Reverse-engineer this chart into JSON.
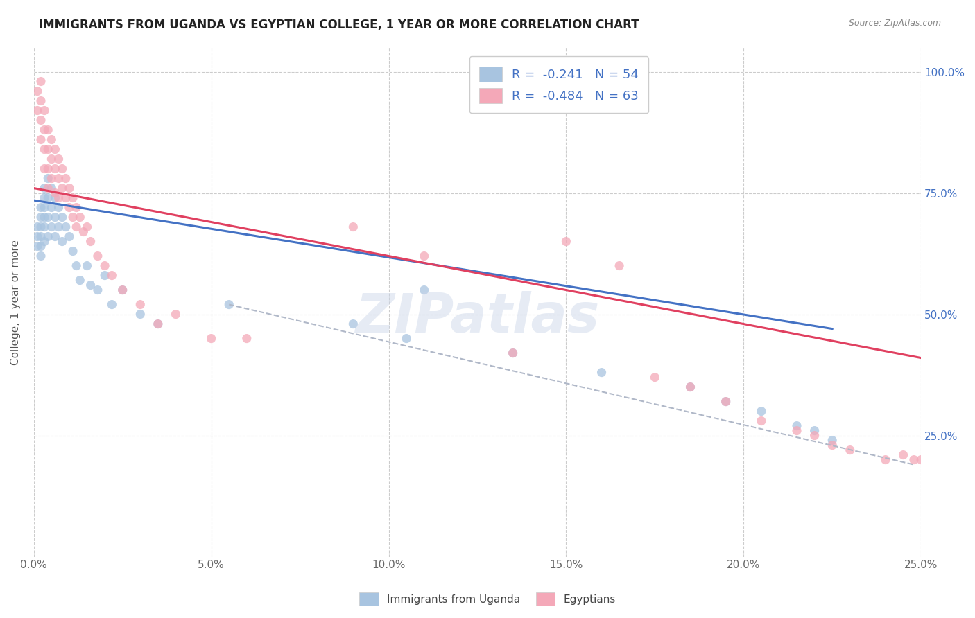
{
  "title": "IMMIGRANTS FROM UGANDA VS EGYPTIAN COLLEGE, 1 YEAR OR MORE CORRELATION CHART",
  "source": "Source: ZipAtlas.com",
  "ylabel": "College, 1 year or more",
  "xlim": [
    0.0,
    0.25
  ],
  "ylim": [
    0.0,
    1.05
  ],
  "xtick_labels": [
    "0.0%",
    "5.0%",
    "10.0%",
    "15.0%",
    "20.0%",
    "25.0%"
  ],
  "xtick_values": [
    0.0,
    0.05,
    0.1,
    0.15,
    0.2,
    0.25
  ],
  "ytick_labels": [
    "25.0%",
    "50.0%",
    "75.0%",
    "100.0%"
  ],
  "ytick_values": [
    0.25,
    0.5,
    0.75,
    1.0
  ],
  "legend_r1": "R =  -0.241   N = 54",
  "legend_r2": "R =  -0.484   N = 63",
  "color_blue": "#a8c4e0",
  "color_pink": "#f4a8b8",
  "line_blue": "#4472c4",
  "line_pink": "#e04060",
  "line_dashed": "#b0b8c8",
  "uganda_x": [
    0.001,
    0.001,
    0.001,
    0.002,
    0.002,
    0.002,
    0.002,
    0.002,
    0.002,
    0.003,
    0.003,
    0.003,
    0.003,
    0.003,
    0.003,
    0.004,
    0.004,
    0.004,
    0.004,
    0.005,
    0.005,
    0.005,
    0.006,
    0.006,
    0.006,
    0.007,
    0.007,
    0.008,
    0.008,
    0.009,
    0.01,
    0.011,
    0.012,
    0.013,
    0.015,
    0.016,
    0.018,
    0.02,
    0.022,
    0.025,
    0.03,
    0.035,
    0.055,
    0.09,
    0.105,
    0.11,
    0.135,
    0.16,
    0.185,
    0.195,
    0.205,
    0.215,
    0.22,
    0.225
  ],
  "uganda_y": [
    0.68,
    0.66,
    0.64,
    0.72,
    0.7,
    0.68,
    0.66,
    0.64,
    0.62,
    0.76,
    0.74,
    0.72,
    0.7,
    0.68,
    0.65,
    0.78,
    0.74,
    0.7,
    0.66,
    0.76,
    0.72,
    0.68,
    0.74,
    0.7,
    0.66,
    0.72,
    0.68,
    0.7,
    0.65,
    0.68,
    0.66,
    0.63,
    0.6,
    0.57,
    0.6,
    0.56,
    0.55,
    0.58,
    0.52,
    0.55,
    0.5,
    0.48,
    0.52,
    0.48,
    0.45,
    0.55,
    0.42,
    0.38,
    0.35,
    0.32,
    0.3,
    0.27,
    0.26,
    0.24
  ],
  "egyptian_x": [
    0.001,
    0.001,
    0.002,
    0.002,
    0.002,
    0.002,
    0.003,
    0.003,
    0.003,
    0.003,
    0.004,
    0.004,
    0.004,
    0.004,
    0.005,
    0.005,
    0.005,
    0.006,
    0.006,
    0.006,
    0.007,
    0.007,
    0.007,
    0.008,
    0.008,
    0.009,
    0.009,
    0.01,
    0.01,
    0.011,
    0.011,
    0.012,
    0.012,
    0.013,
    0.014,
    0.015,
    0.016,
    0.018,
    0.02,
    0.022,
    0.025,
    0.03,
    0.035,
    0.04,
    0.05,
    0.06,
    0.09,
    0.11,
    0.135,
    0.15,
    0.165,
    0.175,
    0.185,
    0.195,
    0.205,
    0.215,
    0.22,
    0.225,
    0.23,
    0.24,
    0.245,
    0.248,
    0.25
  ],
  "egyptian_y": [
    0.96,
    0.92,
    0.98,
    0.94,
    0.9,
    0.86,
    0.92,
    0.88,
    0.84,
    0.8,
    0.88,
    0.84,
    0.8,
    0.76,
    0.86,
    0.82,
    0.78,
    0.84,
    0.8,
    0.75,
    0.82,
    0.78,
    0.74,
    0.8,
    0.76,
    0.78,
    0.74,
    0.76,
    0.72,
    0.74,
    0.7,
    0.72,
    0.68,
    0.7,
    0.67,
    0.68,
    0.65,
    0.62,
    0.6,
    0.58,
    0.55,
    0.52,
    0.48,
    0.5,
    0.45,
    0.45,
    0.68,
    0.62,
    0.42,
    0.65,
    0.6,
    0.37,
    0.35,
    0.32,
    0.28,
    0.26,
    0.25,
    0.23,
    0.22,
    0.2,
    0.21,
    0.2,
    0.2
  ],
  "blue_trend_x": [
    0.0,
    0.225
  ],
  "blue_trend_y": [
    0.735,
    0.47
  ],
  "pink_trend_x": [
    0.0,
    0.25
  ],
  "pink_trend_y": [
    0.76,
    0.41
  ],
  "dashed_trend_x": [
    0.055,
    0.248
  ],
  "dashed_trend_y": [
    0.52,
    0.19
  ],
  "watermark": "ZIPatlas",
  "background_color": "#ffffff",
  "grid_color": "#cccccc"
}
